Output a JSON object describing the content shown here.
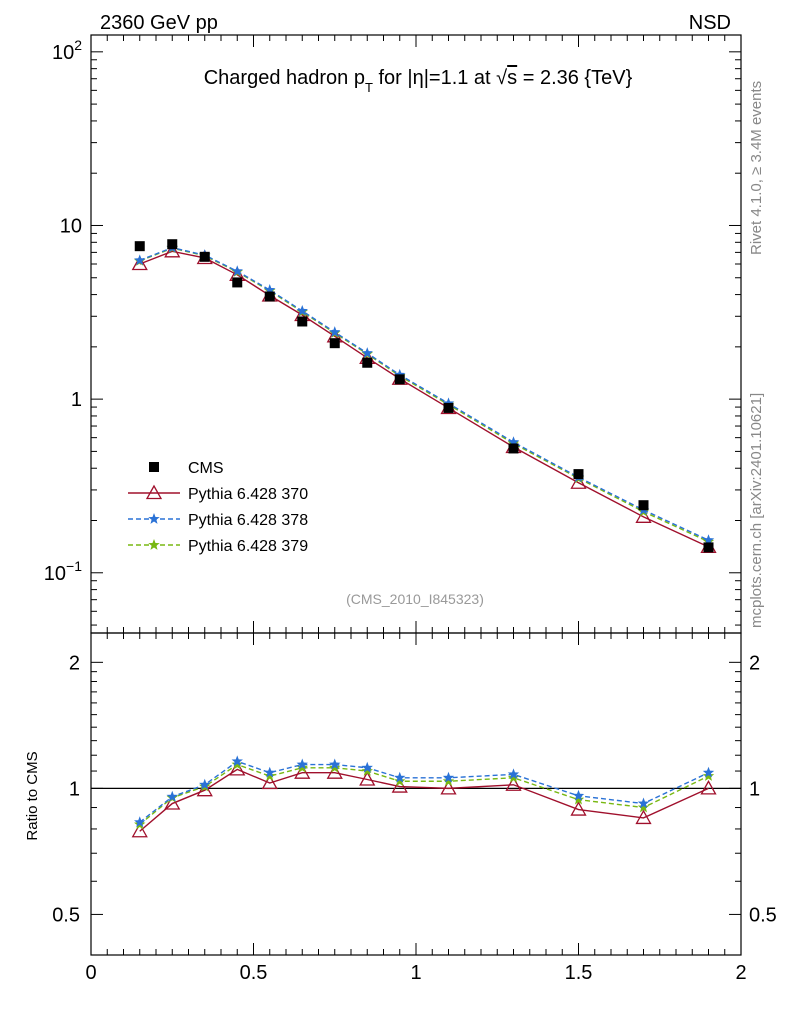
{
  "header": {
    "left": "2360 GeV pp",
    "right": "NSD"
  },
  "side_text": {
    "rivet": "Rivet 4.1.0, ≥ 3.4M events",
    "mcplots": "mcplots.cern.ch [arXiv:2401.10621]"
  },
  "chart_data": {
    "type": "scatter",
    "title": "Charged hadron p_T for |η|=1.1 at √s = 2.36 {TeV}",
    "title_parts": {
      "a": "Charged hadron p",
      "sub": "T",
      "b": " for |η|=1.1 at ",
      "sqrt": "√",
      "s": "s",
      "c": " = 2.36 {TeV}"
    },
    "watermark": "(CMS_2010_I845323)",
    "xlim": [
      0,
      2
    ],
    "x_ticks": [
      {
        "v": 0,
        "label": "0"
      },
      {
        "v": 0.5,
        "label": "0.5"
      },
      {
        "v": 1,
        "label": "1"
      },
      {
        "v": 1.5,
        "label": "1.5"
      },
      {
        "v": 2,
        "label": "2"
      }
    ],
    "main_panel": {
      "yscale": "log",
      "ylim": [
        0.045,
        125
      ],
      "y_ticks": [
        {
          "v": 0.1,
          "base": "10",
          "exp": "−1"
        },
        {
          "v": 1,
          "base": "1",
          "exp": ""
        },
        {
          "v": 10,
          "base": "10",
          "exp": ""
        },
        {
          "v": 100,
          "base": "10",
          "exp": "2"
        }
      ],
      "legend_position": "lower-left",
      "x": [
        0.15,
        0.25,
        0.35,
        0.45,
        0.55,
        0.65,
        0.75,
        0.85,
        0.95,
        1.1,
        1.3,
        1.5,
        1.7,
        1.9
      ],
      "series": [
        {
          "name": "CMS",
          "color": "#000000",
          "marker": "square",
          "style": "points",
          "values": [
            7.6,
            7.8,
            6.6,
            4.7,
            3.9,
            2.8,
            2.1,
            1.62,
            1.3,
            0.89,
            0.52,
            0.37,
            0.245,
            0.14
          ]
        },
        {
          "name": "Pythia 6.428 370",
          "color": "#a0102c",
          "marker": "triangle-open",
          "style": "solid",
          "values": [
            6.0,
            7.1,
            6.5,
            5.2,
            3.95,
            3.05,
            2.3,
            1.73,
            1.31,
            0.89,
            0.53,
            0.33,
            0.21,
            0.141
          ]
        },
        {
          "name": "Pythia 6.428 378",
          "color": "#2a72d6",
          "marker": "star",
          "style": "dashed",
          "values": [
            6.3,
            7.45,
            6.75,
            5.45,
            4.25,
            3.22,
            2.43,
            1.84,
            1.38,
            0.945,
            0.565,
            0.355,
            0.23,
            0.154
          ]
        },
        {
          "name": "Pythia 6.428 379",
          "color": "#78b812",
          "marker": "star",
          "style": "dashed",
          "values": [
            6.25,
            7.4,
            6.7,
            5.4,
            4.2,
            3.18,
            2.4,
            1.82,
            1.36,
            0.93,
            0.555,
            0.35,
            0.225,
            0.151
          ]
        }
      ]
    },
    "ratio_panel": {
      "ylabel": "Ratio to CMS",
      "yscale": "log",
      "ylim": [
        0.4,
        2.35
      ],
      "reference_line": 1,
      "y_ticks": [
        {
          "v": 0.5,
          "label": "0.5"
        },
        {
          "v": 1,
          "label": "1"
        },
        {
          "v": 2,
          "label": "2"
        }
      ],
      "x": [
        0.15,
        0.25,
        0.35,
        0.45,
        0.55,
        0.65,
        0.75,
        0.85,
        0.95,
        1.1,
        1.3,
        1.5,
        1.7,
        1.9
      ],
      "series": [
        {
          "name": "Pythia 6.428 370",
          "color": "#a0102c",
          "marker": "triangle-open",
          "style": "solid",
          "values": [
            0.79,
            0.92,
            0.99,
            1.11,
            1.03,
            1.09,
            1.09,
            1.05,
            1.01,
            1.0,
            1.02,
            0.89,
            0.85,
            1.0
          ]
        },
        {
          "name": "Pythia 6.428 378",
          "color": "#2a72d6",
          "marker": "star",
          "style": "dashed",
          "values": [
            0.83,
            0.955,
            1.02,
            1.16,
            1.09,
            1.14,
            1.14,
            1.12,
            1.06,
            1.06,
            1.08,
            0.96,
            0.92,
            1.09
          ]
        },
        {
          "name": "Pythia 6.428 379",
          "color": "#78b812",
          "marker": "star",
          "style": "dashed",
          "values": [
            0.82,
            0.95,
            1.01,
            1.14,
            1.07,
            1.12,
            1.12,
            1.1,
            1.04,
            1.04,
            1.06,
            0.94,
            0.9,
            1.07
          ]
        }
      ]
    }
  }
}
